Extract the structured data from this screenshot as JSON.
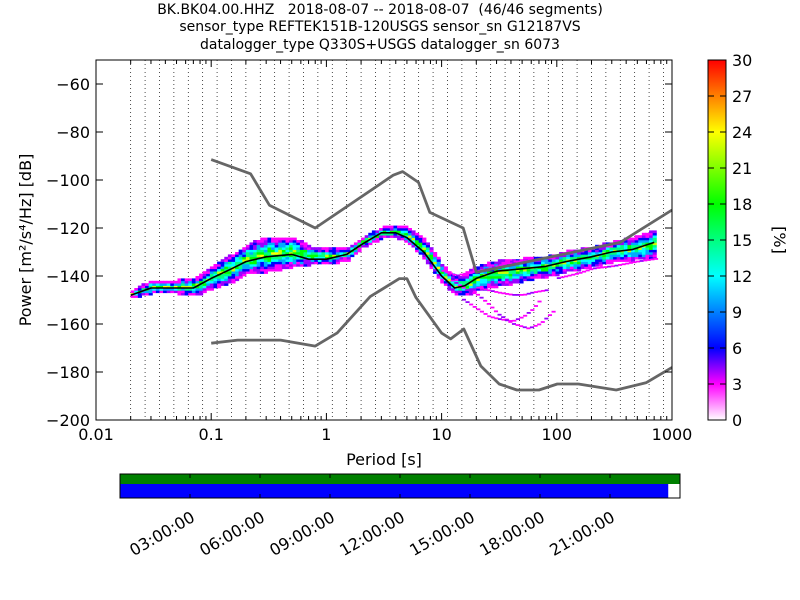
{
  "title": {
    "line1": "BK.BK04.00.HHZ   2018-08-07 -- 2018-08-07  (46/46 segments)",
    "line2": "sensor_type REFTEK151B-120USGS sensor_sn G12187VS",
    "line3": "datalogger_type Q330S+USGS datalogger_sn 6073"
  },
  "chart_data": [
    {
      "type": "heatmap",
      "name": "ppsd",
      "xlabel": "Period [s]",
      "ylabel": "Power [m²/s⁴/Hz] [dB]",
      "x_scale": "log",
      "xlim": [
        0.01,
        1000
      ],
      "ylim": [
        -200,
        -50
      ],
      "x_ticks": [
        0.01,
        0.1,
        1,
        10,
        100,
        1000
      ],
      "x_tick_labels": [
        "0.01",
        "0.1",
        "1",
        "10",
        "100",
        "1000"
      ],
      "y_ticks": [
        -200,
        -180,
        -160,
        -140,
        -120,
        -100,
        -80,
        -60
      ],
      "y_tick_labels": [
        "−200",
        "−180",
        "−160",
        "−140",
        "−120",
        "−100",
        "−80",
        "−60"
      ],
      "grid": "dotted vertical lines at period bin centres",
      "colorbar": {
        "label": "[%]",
        "range": [
          0,
          30
        ],
        "ticks": [
          0,
          3,
          6,
          9,
          12,
          15,
          18,
          21,
          24,
          27,
          30
        ],
        "colormap": "pqlx"
      },
      "series": [
        {
          "label_visible": false,
          "role": "high noise model",
          "color": "#666666",
          "x": [
            0.1,
            0.22,
            0.32,
            0.8,
            3.8,
            4.6,
            6.3,
            7.9,
            15.4,
            20,
            354.8,
            1000
          ],
          "y": [
            -91.5,
            -97.4,
            -110.5,
            -120,
            -98,
            -96.5,
            -101,
            -113.5,
            -120,
            -138.5,
            -126,
            -112.5
          ]
        },
        {
          "label_visible": false,
          "role": "low noise model",
          "color": "#666666",
          "x": [
            0.1,
            0.17,
            0.4,
            0.8,
            1.24,
            2.4,
            4.3,
            5,
            6,
            10,
            12,
            15.6,
            21.9,
            31.6,
            45,
            70,
            101,
            154,
            328,
            600,
            1000
          ],
          "y": [
            -168,
            -166.7,
            -166.7,
            -169.2,
            -163.7,
            -148.6,
            -141.1,
            -141.1,
            -149,
            -163.8,
            -166.2,
            -162.1,
            -177.5,
            -185,
            -187.5,
            -187.5,
            -185,
            -185,
            -187.5,
            -184.4,
            -178.1
          ]
        },
        {
          "label_visible": false,
          "role": "mode",
          "color": "#000000",
          "x": [
            0.02,
            0.03,
            0.05,
            0.07,
            0.1,
            0.15,
            0.2,
            0.3,
            0.5,
            0.7,
            1.0,
            1.5,
            2.0,
            3.0,
            4.0,
            5.0,
            7.0,
            10,
            13,
            16,
            20,
            30,
            50,
            80,
            120,
            200,
            300,
            450,
            700
          ],
          "y": [
            -148,
            -145,
            -145,
            -145,
            -141,
            -137,
            -134,
            -132,
            -131,
            -133,
            -133,
            -131,
            -127,
            -122,
            -122,
            -124,
            -130,
            -140,
            -145,
            -144,
            -141,
            -138,
            -137,
            -136,
            -134,
            -132,
            -130,
            -129,
            -126
          ]
        }
      ],
      "density_regions": [
        {
          "x": [
            0.02,
            0.03,
            0.05,
            0.07,
            0.1,
            0.15,
            0.2,
            0.3,
            0.5,
            0.7,
            1.0,
            1.5,
            2.0,
            3.0,
            4.0,
            5.0,
            7.0,
            10,
            13,
            16,
            20,
            30,
            50,
            80,
            120,
            200,
            300,
            450,
            700
          ],
          "y_low": [
            -149,
            -147,
            -147,
            -148,
            -145,
            -142,
            -139,
            -138,
            -136,
            -135,
            -135,
            -133,
            -128,
            -124,
            -124,
            -126,
            -133,
            -143,
            -148,
            -148,
            -146,
            -144,
            -142,
            -140,
            -138,
            -136,
            -134,
            -133,
            -132
          ],
          "y_high": [
            -147,
            -143,
            -143,
            -142,
            -137,
            -132,
            -128,
            -125,
            -125,
            -129,
            -130,
            -129,
            -125,
            -121,
            -120,
            -121,
            -126,
            -137,
            -142,
            -140,
            -137,
            -135,
            -134,
            -133,
            -131,
            -129,
            -127,
            -125,
            -122
          ]
        }
      ],
      "outlier_curves": [
        {
          "x": [
            10,
            13,
            16,
            20,
            25,
            30,
            40,
            50,
            70
          ],
          "y": [
            -138,
            -140,
            -139,
            -138,
            -137,
            -136,
            -134,
            -134,
            -133
          ]
        },
        {
          "x": [
            12,
            16,
            20,
            25,
            30,
            40,
            55,
            70,
            90
          ],
          "y": [
            -142,
            -146,
            -148,
            -152,
            -156,
            -160,
            -162,
            -160,
            -155
          ]
        },
        {
          "x": [
            15,
            20,
            25,
            30,
            40,
            50,
            60,
            70
          ],
          "y": [
            -150,
            -154,
            -157,
            -158,
            -159,
            -157,
            -154,
            -150
          ]
        },
        {
          "x": [
            20,
            30,
            40,
            50,
            60,
            80
          ],
          "y": [
            -145,
            -147,
            -148,
            -148,
            -147,
            -146
          ]
        },
        {
          "x": [
            100,
            150,
            200,
            300,
            500,
            700
          ],
          "y": [
            -141,
            -139,
            -137,
            -136,
            -134,
            -133
          ]
        }
      ]
    },
    {
      "type": "timeline",
      "name": "data-coverage",
      "x_tick_labels": [
        "03:00:00",
        "06:00:00",
        "09:00:00",
        "12:00:00",
        "15:00:00",
        "18:00:00",
        "21:00:00"
      ],
      "tracks": [
        {
          "role": "gaps/overlaps",
          "color": "#008000",
          "coverage": [
            0.0,
            1.0
          ]
        },
        {
          "role": "data",
          "color": "#0000ff",
          "coverage": [
            0.0,
            0.979
          ]
        }
      ]
    }
  ]
}
